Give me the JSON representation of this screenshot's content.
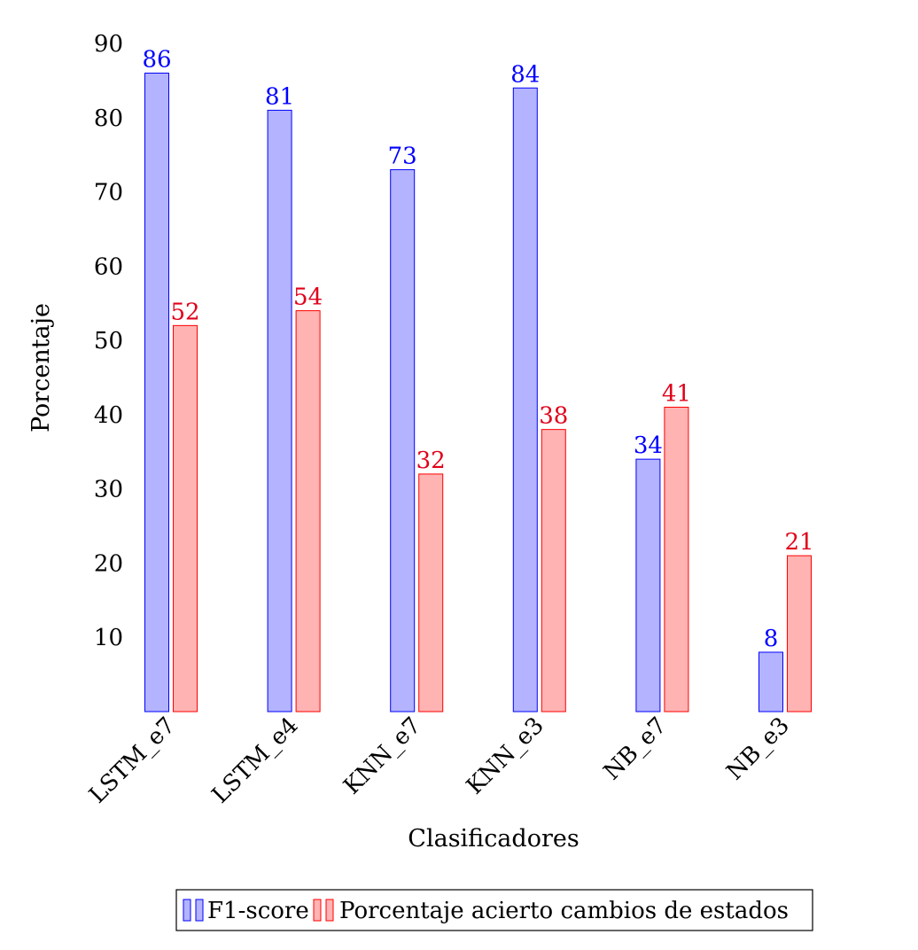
{
  "chart_data": {
    "type": "bar",
    "categories": [
      "LSTM_e7",
      "LSTM_e4",
      "KNN_e7",
      "KNN_e3",
      "NB_e7",
      "NB_e3"
    ],
    "series": [
      {
        "name": "F1-score",
        "values": [
          86,
          81,
          73,
          84,
          34,
          8
        ],
        "fill": "#b3b3ff",
        "stroke": "#0000ff",
        "label_color": "#0000ff"
      },
      {
        "name": "Porcentaje acierto cambios de estados",
        "values": [
          52,
          54,
          32,
          38,
          41,
          21
        ],
        "fill": "#ffb3b3",
        "stroke": "#ff0000",
        "label_color": "#e0001a"
      }
    ],
    "xlabel": "Clasificadores",
    "ylabel": "Porcentaje",
    "ylim": [
      0,
      90
    ],
    "yticks": [
      10,
      20,
      30,
      40,
      50,
      60,
      70,
      80,
      90
    ],
    "grid": false,
    "legend_position": "bottom"
  }
}
